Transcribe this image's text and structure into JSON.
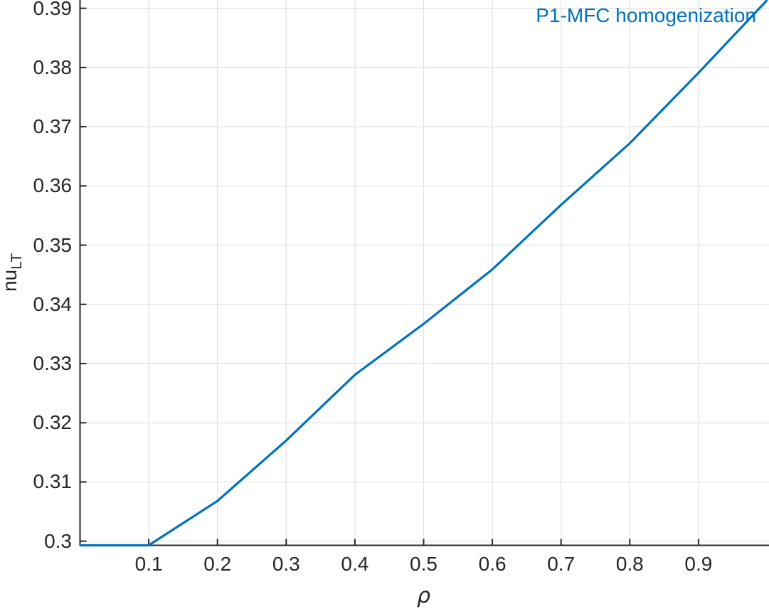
{
  "figure": {
    "background": "#ffffff"
  },
  "legend": {
    "label": "P1-MFC homogenization",
    "color": "#0072bd",
    "position": "top-right"
  },
  "axes": {
    "ylabel_main": "nu",
    "ylabel_sub": "LT",
    "xlabel": "ρ",
    "axis_color": "#262626",
    "grid_color": "#e2e2e2",
    "text_color": "#262626"
  },
  "chart_data": {
    "type": "line",
    "title": "",
    "xlabel": "ρ",
    "ylabel": "nu_LT",
    "x": [
      0,
      0.1,
      0.2,
      0.3,
      0.4,
      0.5,
      0.6,
      0.7,
      0.8,
      0.9,
      1.0
    ],
    "series": [
      {
        "name": "P1-MFC homogenization",
        "color": "#0072bd",
        "values": [
          0.2993,
          0.2993,
          0.3068,
          0.317,
          0.3281,
          0.3367,
          0.3459,
          0.3568,
          0.3672,
          0.3791,
          0.3914
        ]
      }
    ],
    "xlim": [
      0,
      1
    ],
    "ylim": [
      0.2993,
      0.3914
    ],
    "xticks": [
      0.1,
      0.2,
      0.3,
      0.4,
      0.5,
      0.6,
      0.7,
      0.8,
      0.9
    ],
    "xtick_labels": [
      "0.1",
      "0.2",
      "0.3",
      "0.4",
      "0.5",
      "0.6",
      "0.7",
      "0.8",
      "0.9"
    ],
    "yticks": [
      0.3,
      0.31,
      0.32,
      0.33,
      0.34,
      0.35,
      0.36,
      0.37,
      0.38,
      0.39
    ],
    "ytick_labels": [
      "0.3",
      "0.31",
      "0.32",
      "0.33",
      "0.34",
      "0.35",
      "0.36",
      "0.37",
      "0.38",
      "0.39"
    ],
    "grid": true,
    "legend_position": "top-right"
  }
}
